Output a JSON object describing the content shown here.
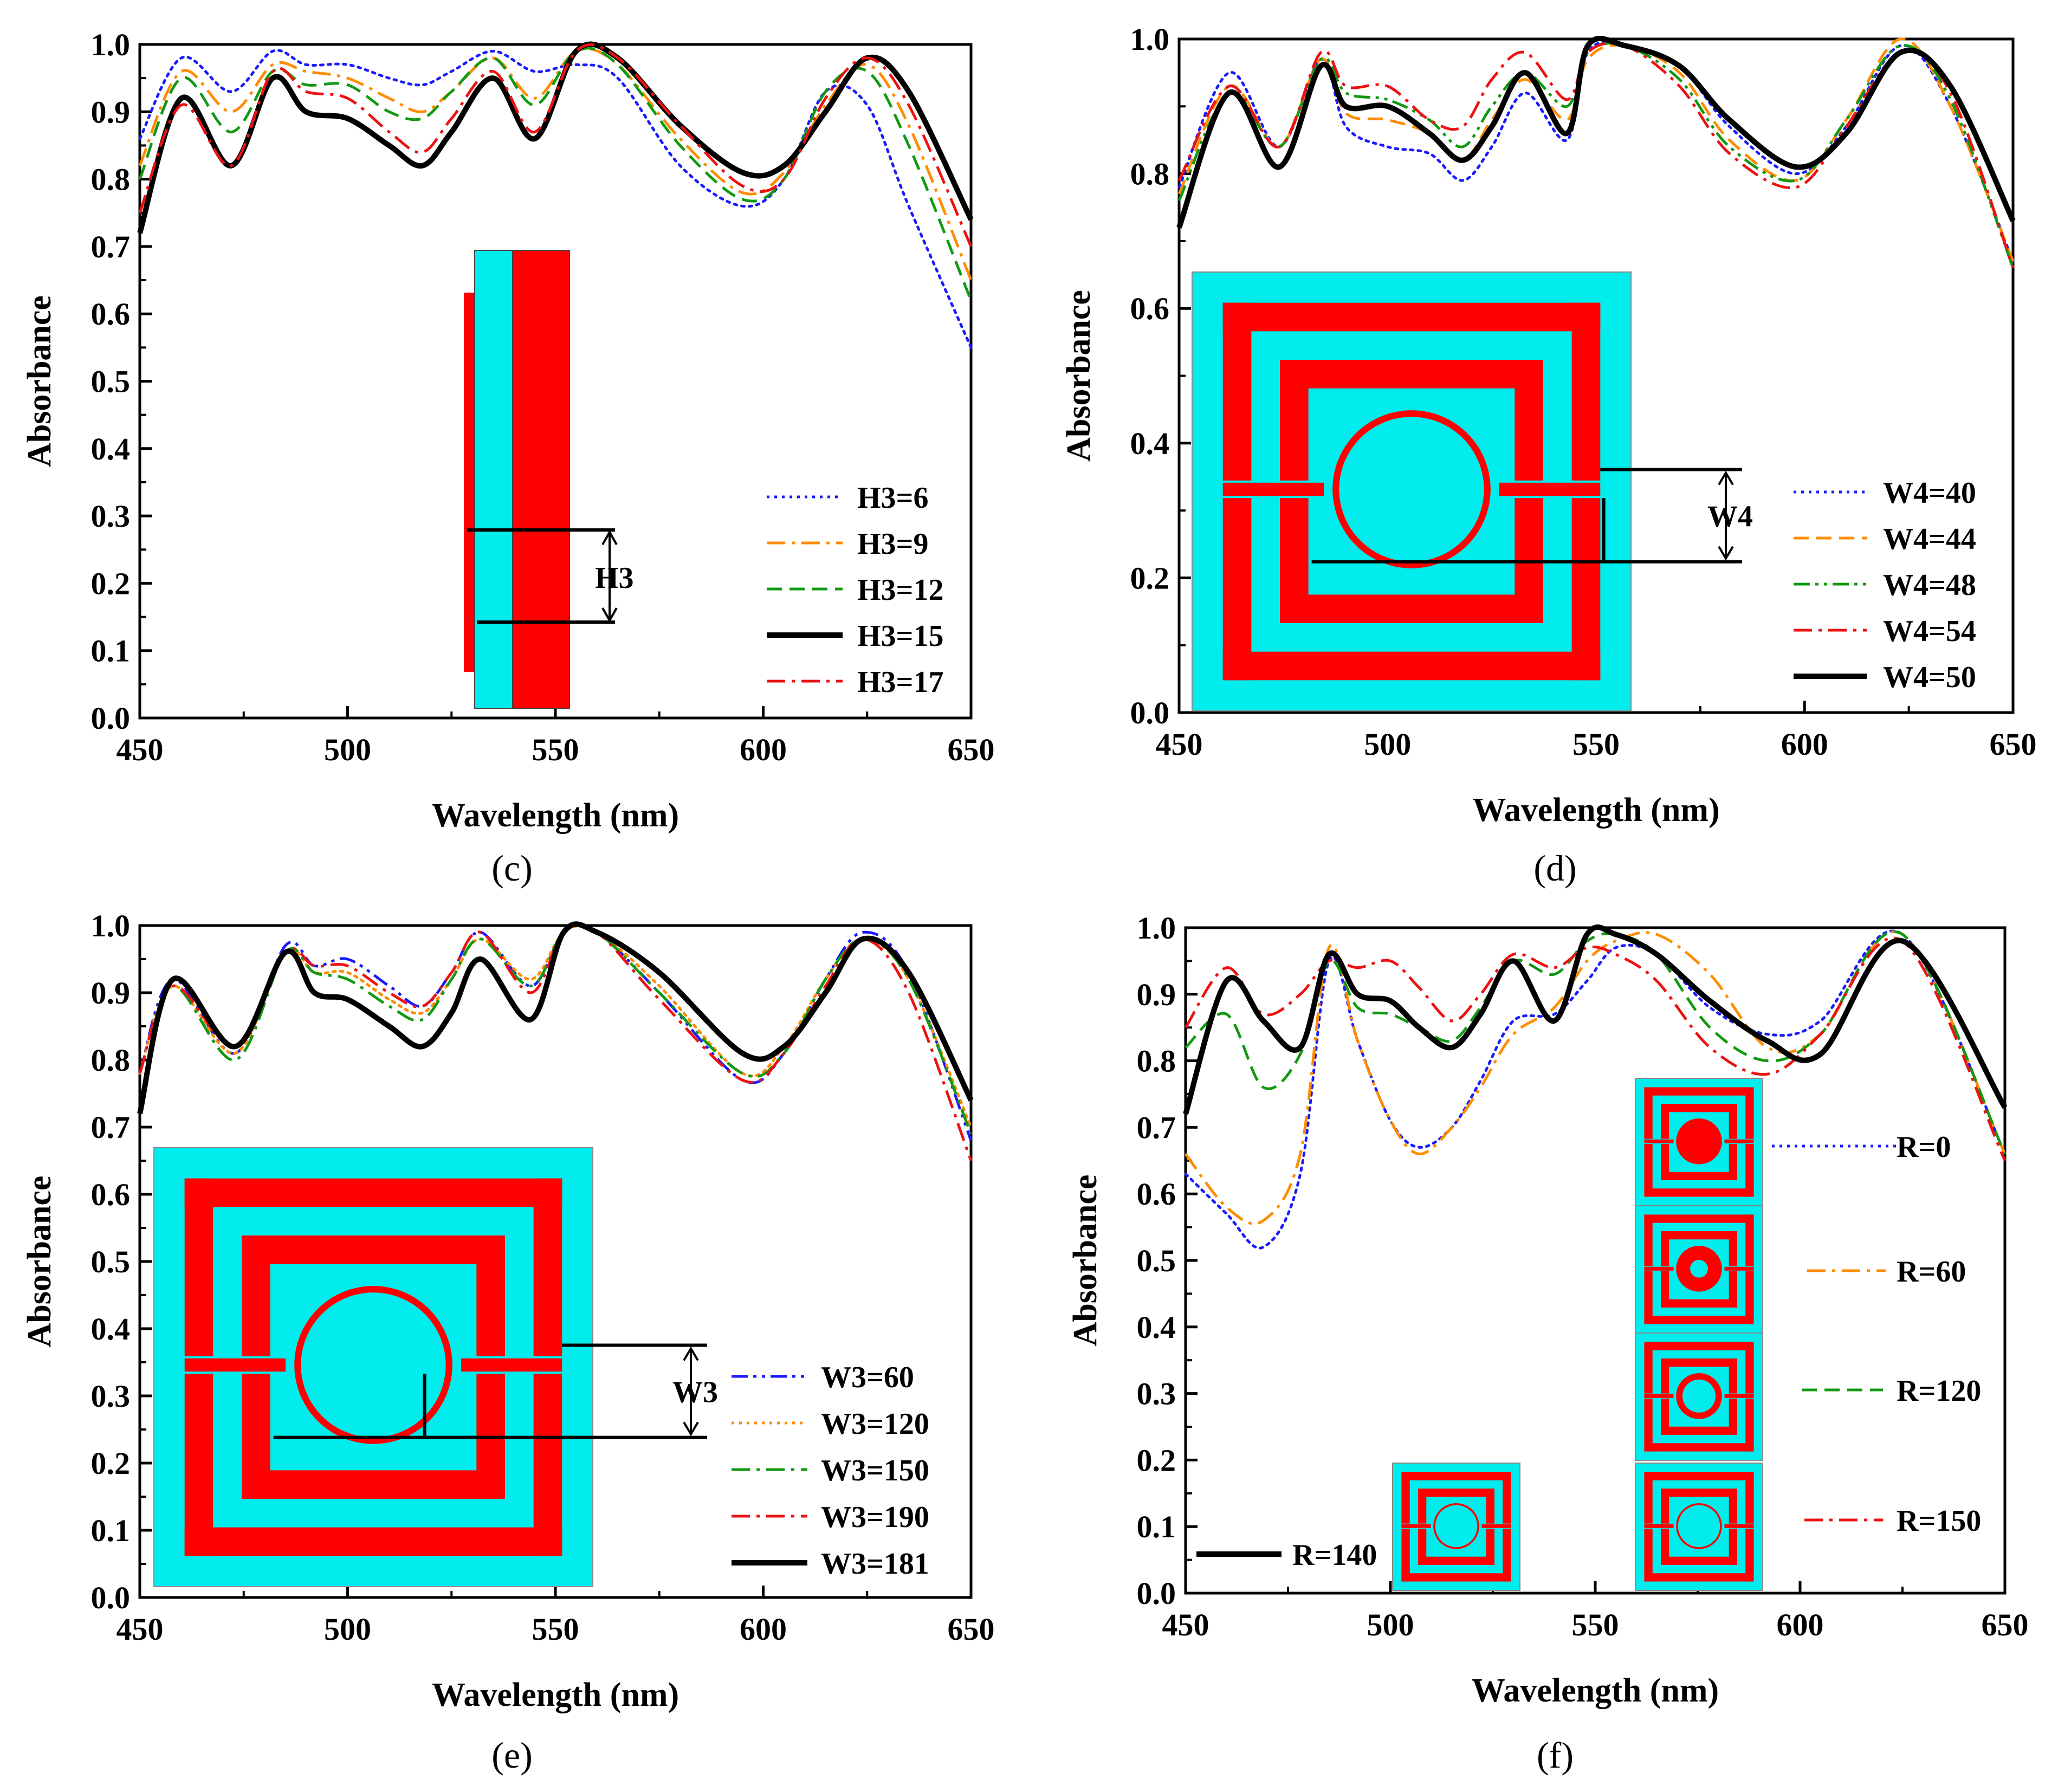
{
  "colors": {
    "substrate": "#00eded",
    "metal": "#ff0000",
    "H3_6": "#1a1aff",
    "H3_9": "#ff8c00",
    "H3_12": "#119911",
    "H3_15": "#000000",
    "H3_17": "#ee1111"
  },
  "chart_data": [
    {
      "type": "line",
      "panel": "(c)",
      "xlabel": "Wavelength (nm)",
      "ylabel": "Absorbance",
      "xlim": [
        450,
        650
      ],
      "ylim": [
        0,
        1.0
      ],
      "xticks": [
        "450",
        "500",
        "550",
        "600",
        "650"
      ],
      "yticks": [
        "0.0",
        "0.1",
        "0.2",
        "0.3",
        "0.4",
        "0.5",
        "0.6",
        "0.7",
        "0.8",
        "0.9",
        "1.0"
      ],
      "legend_position": "lower-right",
      "inset": "side-view",
      "inset_label": "H3",
      "x": [
        450,
        460,
        472,
        482,
        490,
        500,
        510,
        518,
        525,
        535,
        545,
        555,
        565,
        580,
        595,
        605,
        615,
        625,
        635,
        650
      ],
      "series": [
        {
          "name": "H3=6",
          "style": "dotted",
          "color": "#1a1aff",
          "width": 5,
          "values": [
            0.86,
            0.98,
            0.93,
            0.99,
            0.97,
            0.97,
            0.95,
            0.94,
            0.96,
            0.99,
            0.96,
            0.97,
            0.95,
            0.82,
            0.76,
            0.8,
            0.93,
            0.91,
            0.76,
            0.55
          ]
        },
        {
          "name": "H3=9",
          "style": "dash-dot",
          "color": "#ff8c00",
          "width": 5,
          "values": [
            0.82,
            0.96,
            0.9,
            0.97,
            0.96,
            0.95,
            0.92,
            0.9,
            0.93,
            0.98,
            0.92,
            0.99,
            0.97,
            0.86,
            0.78,
            0.81,
            0.91,
            0.97,
            0.88,
            0.65
          ]
        },
        {
          "name": "H3=12",
          "style": "dashed",
          "color": "#119911",
          "width": 5,
          "values": [
            0.8,
            0.95,
            0.87,
            0.96,
            0.94,
            0.94,
            0.9,
            0.89,
            0.93,
            0.98,
            0.91,
            0.99,
            0.97,
            0.85,
            0.77,
            0.8,
            0.93,
            0.96,
            0.85,
            0.62
          ]
        },
        {
          "name": "H3=15",
          "style": "solid",
          "color": "#000000",
          "width": 10,
          "values": [
            0.72,
            0.92,
            0.82,
            0.95,
            0.9,
            0.89,
            0.85,
            0.82,
            0.87,
            0.95,
            0.86,
            0.99,
            0.98,
            0.88,
            0.81,
            0.82,
            0.9,
            0.98,
            0.93,
            0.74
          ]
        },
        {
          "name": "H3=17",
          "style": "dash-dot",
          "color": "#ee1111",
          "width": 5,
          "values": [
            0.75,
            0.91,
            0.82,
            0.96,
            0.93,
            0.92,
            0.87,
            0.84,
            0.89,
            0.96,
            0.87,
            0.99,
            0.98,
            0.88,
            0.79,
            0.8,
            0.92,
            0.98,
            0.91,
            0.7
          ]
        }
      ]
    },
    {
      "type": "line",
      "panel": "(d)",
      "xlabel": "Wavelength (nm)",
      "ylabel": "Absorbance",
      "xlim": [
        450,
        650
      ],
      "ylim": [
        0,
        1.0
      ],
      "xticks": [
        "450",
        "500",
        "550",
        "600",
        "650"
      ],
      "yticks": [
        "0.0",
        "0.2",
        "0.4",
        "0.6",
        "0.8",
        "1.0"
      ],
      "legend_position": "lower-right",
      "inset": "top-view",
      "inset_label": "W4",
      "x": [
        450,
        462,
        474,
        484,
        490,
        500,
        510,
        518,
        525,
        533,
        543,
        548,
        557,
        570,
        582,
        598,
        610,
        623,
        635,
        650
      ],
      "series": [
        {
          "name": "W4=40",
          "style": "dotted",
          "color": "#1a1aff",
          "width": 5,
          "values": [
            0.78,
            0.95,
            0.84,
            0.97,
            0.87,
            0.84,
            0.83,
            0.79,
            0.84,
            0.92,
            0.85,
            0.98,
            0.99,
            0.96,
            0.87,
            0.8,
            0.87,
            0.99,
            0.9,
            0.67
          ]
        },
        {
          "name": "W4=44",
          "style": "dashed",
          "color": "#ff8c00",
          "width": 5,
          "values": [
            0.77,
            0.93,
            0.84,
            0.97,
            0.89,
            0.88,
            0.86,
            0.82,
            0.88,
            0.94,
            0.88,
            0.97,
            0.99,
            0.95,
            0.85,
            0.79,
            0.88,
            1.0,
            0.9,
            0.67
          ]
        },
        {
          "name": "W4=48",
          "style": "dash-dot-dot",
          "color": "#119911",
          "width": 5,
          "values": [
            0.76,
            0.92,
            0.84,
            0.97,
            0.92,
            0.91,
            0.88,
            0.84,
            0.9,
            0.95,
            0.9,
            0.98,
            0.99,
            0.94,
            0.84,
            0.79,
            0.88,
            0.99,
            0.91,
            0.66
          ]
        },
        {
          "name": "W4=54",
          "style": "dash-dot",
          "color": "#ee1111",
          "width": 5,
          "values": [
            0.79,
            0.93,
            0.84,
            0.98,
            0.93,
            0.93,
            0.88,
            0.87,
            0.94,
            0.98,
            0.91,
            0.98,
            0.99,
            0.93,
            0.83,
            0.78,
            0.87,
            0.98,
            0.92,
            0.66
          ]
        },
        {
          "name": "W4=50",
          "style": "solid",
          "color": "#000000",
          "width": 10,
          "values": [
            0.72,
            0.92,
            0.81,
            0.96,
            0.9,
            0.9,
            0.86,
            0.82,
            0.87,
            0.95,
            0.86,
            0.99,
            0.99,
            0.96,
            0.88,
            0.81,
            0.86,
            0.98,
            0.93,
            0.73
          ]
        }
      ]
    },
    {
      "type": "line",
      "panel": "(e)",
      "xlabel": "Wavelength (nm)",
      "ylabel": "Absorbance",
      "xlim": [
        450,
        650
      ],
      "ylim": [
        0,
        1.0
      ],
      "xticks": [
        "450",
        "500",
        "550",
        "600",
        "650"
      ],
      "yticks": [
        "0.0",
        "0.1",
        "0.2",
        "0.3",
        "0.4",
        "0.5",
        "0.6",
        "0.7",
        "0.8",
        "0.9",
        "1.0"
      ],
      "legend_position": "lower-right",
      "inset": "top-view",
      "inset_label": "W3",
      "x": [
        450,
        458,
        473,
        485,
        492,
        500,
        510,
        518,
        525,
        532,
        544,
        552,
        560,
        575,
        595,
        605,
        615,
        624,
        635,
        650
      ],
      "series": [
        {
          "name": "W3=60",
          "style": "dash-dot-dot",
          "color": "#1a1aff",
          "width": 5,
          "values": [
            0.78,
            0.92,
            0.81,
            0.97,
            0.94,
            0.95,
            0.91,
            0.88,
            0.93,
            0.99,
            0.91,
            0.99,
            0.99,
            0.9,
            0.77,
            0.81,
            0.92,
            0.99,
            0.93,
            0.68
          ]
        },
        {
          "name": "W3=120",
          "style": "dotted",
          "color": "#ff8c00",
          "width": 5,
          "values": [
            0.78,
            0.91,
            0.81,
            0.96,
            0.93,
            0.93,
            0.89,
            0.87,
            0.92,
            0.98,
            0.92,
            0.99,
            0.99,
            0.91,
            0.78,
            0.82,
            0.92,
            0.98,
            0.92,
            0.7
          ]
        },
        {
          "name": "W3=150",
          "style": "dash-dot",
          "color": "#119911",
          "width": 5,
          "values": [
            0.78,
            0.91,
            0.8,
            0.96,
            0.93,
            0.92,
            0.88,
            0.86,
            0.92,
            0.98,
            0.91,
            0.99,
            0.99,
            0.9,
            0.78,
            0.81,
            0.92,
            0.98,
            0.92,
            0.69
          ]
        },
        {
          "name": "W3=190",
          "style": "dash-dot",
          "color": "#ee1111",
          "width": 5,
          "values": [
            0.78,
            0.91,
            0.82,
            0.96,
            0.94,
            0.94,
            0.9,
            0.88,
            0.93,
            0.99,
            0.9,
            0.99,
            0.99,
            0.89,
            0.77,
            0.81,
            0.91,
            0.98,
            0.9,
            0.65
          ]
        },
        {
          "name": "W3=181",
          "style": "solid",
          "color": "#000000",
          "width": 10,
          "values": [
            0.72,
            0.92,
            0.82,
            0.96,
            0.9,
            0.89,
            0.85,
            0.82,
            0.87,
            0.95,
            0.86,
            0.99,
            0.99,
            0.93,
            0.81,
            0.82,
            0.9,
            0.98,
            0.93,
            0.74
          ]
        }
      ]
    },
    {
      "type": "line",
      "panel": "(f)",
      "xlabel": "Wavelength (nm)",
      "ylabel": "Absorbance",
      "xlim": [
        450,
        650
      ],
      "ylim": [
        0,
        1.0
      ],
      "xticks": [
        "450",
        "500",
        "550",
        "600",
        "650"
      ],
      "yticks": [
        "0.0",
        "0.1",
        "0.2",
        "0.3",
        "0.4",
        "0.5",
        "0.6",
        "0.7",
        "0.8",
        "0.9",
        "1.0"
      ],
      "legend_position": "right, beside each unit-cell inset",
      "inset": "unit-cells",
      "x": [
        450,
        460,
        469,
        478,
        485,
        492,
        500,
        507,
        515,
        522,
        530,
        540,
        548,
        555,
        565,
        578,
        592,
        605,
        625,
        650
      ],
      "series": [
        {
          "name": "R=0",
          "style": "dotted",
          "color": "#1a1aff",
          "width": 5,
          "values": [
            0.63,
            0.57,
            0.52,
            0.63,
            0.95,
            0.83,
            0.71,
            0.67,
            0.7,
            0.77,
            0.86,
            0.87,
            0.92,
            0.97,
            0.96,
            0.88,
            0.84,
            0.86,
            0.99,
            0.66
          ]
        },
        {
          "name": "R=60",
          "style": "dash-dot",
          "color": "#ff8c00",
          "width": 5,
          "values": [
            0.66,
            0.58,
            0.56,
            0.66,
            0.97,
            0.83,
            0.71,
            0.66,
            0.7,
            0.76,
            0.84,
            0.88,
            0.95,
            0.98,
            0.99,
            0.93,
            0.82,
            0.84,
            0.99,
            0.66
          ]
        },
        {
          "name": "R=120",
          "style": "dashed",
          "color": "#119911",
          "width": 5,
          "values": [
            0.82,
            0.87,
            0.76,
            0.81,
            0.95,
            0.88,
            0.87,
            0.85,
            0.83,
            0.88,
            0.95,
            0.93,
            0.98,
            0.99,
            0.96,
            0.85,
            0.8,
            0.84,
            0.99,
            0.66
          ]
        },
        {
          "name": "R=150",
          "style": "dash-dot",
          "color": "#ee1111",
          "width": 5,
          "values": [
            0.85,
            0.94,
            0.87,
            0.9,
            0.95,
            0.94,
            0.95,
            0.91,
            0.86,
            0.9,
            0.96,
            0.94,
            0.97,
            0.96,
            0.92,
            0.82,
            0.78,
            0.84,
            0.98,
            0.65
          ]
        },
        {
          "name": "R=140",
          "style": "solid",
          "color": "#000000",
          "width": 10,
          "values": [
            0.72,
            0.92,
            0.86,
            0.82,
            0.96,
            0.9,
            0.89,
            0.85,
            0.82,
            0.87,
            0.95,
            0.86,
            0.99,
            0.99,
            0.96,
            0.89,
            0.83,
            0.81,
            0.98,
            0.73
          ]
        }
      ]
    }
  ]
}
